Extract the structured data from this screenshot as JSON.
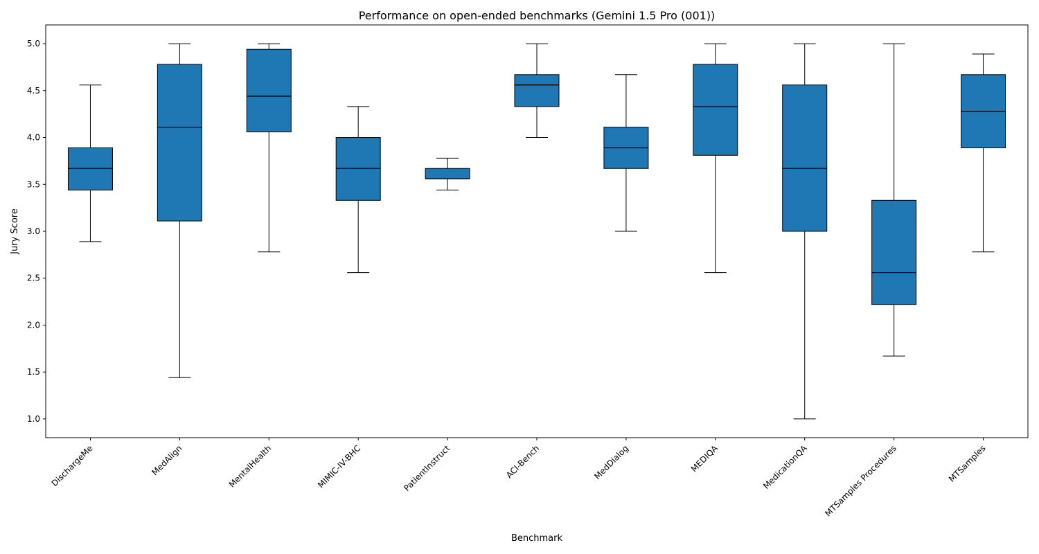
{
  "chart_data": {
    "type": "box",
    "title": "Performance on open-ended benchmarks (Gemini 1.5 Pro (001))",
    "xlabel": "Benchmark",
    "ylabel": "Jury Score",
    "ylim": [
      0.8,
      5.2
    ],
    "yticks": [
      1.0,
      1.5,
      2.0,
      2.5,
      3.0,
      3.5,
      4.0,
      4.5,
      5.0
    ],
    "ytick_labels": [
      "1.0",
      "1.5",
      "2.0",
      "2.5",
      "3.0",
      "3.5",
      "4.0",
      "4.5",
      "5.0"
    ],
    "grid": false,
    "box_color": "#1f77b4",
    "categories": [
      "DischargeMe",
      "MedAlign",
      "MentalHealth",
      "MIMIC-IV-BHC",
      "PatientInstruct",
      "ACI-Bench",
      "MedDialog",
      "MEDIQA",
      "MedicationQA",
      "MTSamples Procedures",
      "MTSamples"
    ],
    "boxes": [
      {
        "whisker_low": 2.89,
        "q1": 3.44,
        "median": 3.67,
        "q3": 3.89,
        "whisker_high": 4.56
      },
      {
        "whisker_low": 1.44,
        "q1": 3.11,
        "median": 4.11,
        "q3": 4.78,
        "whisker_high": 5.0
      },
      {
        "whisker_low": 2.78,
        "q1": 4.06,
        "median": 4.44,
        "q3": 4.94,
        "whisker_high": 5.0
      },
      {
        "whisker_low": 2.56,
        "q1": 3.33,
        "median": 3.67,
        "q3": 4.0,
        "whisker_high": 4.33
      },
      {
        "whisker_low": 3.44,
        "q1": 3.56,
        "median": 3.56,
        "q3": 3.67,
        "whisker_high": 3.78
      },
      {
        "whisker_low": 4.0,
        "q1": 4.33,
        "median": 4.56,
        "q3": 4.67,
        "whisker_high": 5.0
      },
      {
        "whisker_low": 3.0,
        "q1": 3.67,
        "median": 3.89,
        "q3": 4.11,
        "whisker_high": 4.67
      },
      {
        "whisker_low": 2.56,
        "q1": 3.81,
        "median": 4.33,
        "q3": 4.78,
        "whisker_high": 5.0
      },
      {
        "whisker_low": 1.0,
        "q1": 3.0,
        "median": 3.67,
        "q3": 4.56,
        "whisker_high": 5.0
      },
      {
        "whisker_low": 1.67,
        "q1": 2.22,
        "median": 2.56,
        "q3": 3.33,
        "whisker_high": 5.0
      },
      {
        "whisker_low": 2.78,
        "q1": 3.89,
        "median": 4.28,
        "q3": 4.67,
        "whisker_high": 4.89
      }
    ]
  }
}
